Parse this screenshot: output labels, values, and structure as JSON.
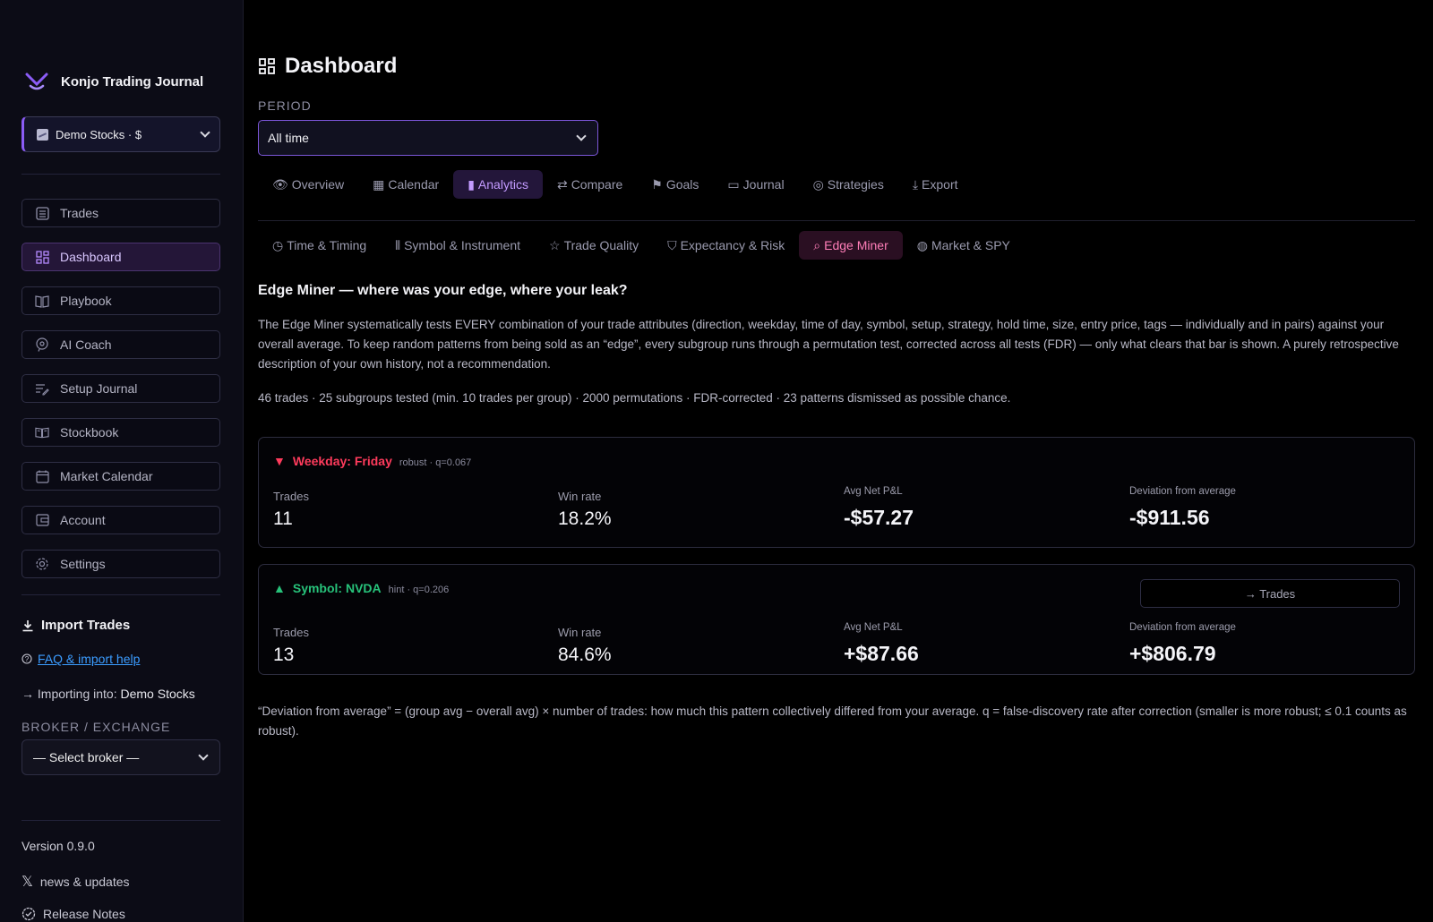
{
  "sidebar": {
    "brand": "Konjo Trading Journal",
    "account": "Demo Stocks · $",
    "nav": [
      {
        "label": "Trades",
        "icon": "list-icon"
      },
      {
        "label": "Dashboard",
        "icon": "grid-icon"
      },
      {
        "label": "Playbook",
        "icon": "book-icon"
      },
      {
        "label": "AI Coach",
        "icon": "coach-icon"
      },
      {
        "label": "Setup Journal",
        "icon": "edit-icon"
      },
      {
        "label": "Stockbook",
        "icon": "open-book-icon"
      },
      {
        "label": "Market Calendar",
        "icon": "calendar-icon"
      },
      {
        "label": "Account",
        "icon": "wallet-icon"
      },
      {
        "label": "Settings",
        "icon": "gear-icon"
      }
    ],
    "active_nav": "Dashboard",
    "import_title": "Import Trades",
    "faq_link": "FAQ & import help",
    "importing_prefix": "Importing into:",
    "importing_target": "Demo Stocks",
    "broker_label": "BROKER / EXCHANGE",
    "broker_select": "— Select broker —",
    "version": "Version 0.9.0",
    "news": "news & updates",
    "release_notes": "Release Notes"
  },
  "main": {
    "title": "Dashboard",
    "period_label": "PERIOD",
    "period_value": "All time",
    "tabs": [
      {
        "label": "Overview",
        "icon": "eye-icon"
      },
      {
        "label": "Calendar",
        "icon": "calendar-icon"
      },
      {
        "label": "Analytics",
        "icon": "bar-chart-icon"
      },
      {
        "label": "Compare",
        "icon": "compare-icon"
      },
      {
        "label": "Goals",
        "icon": "flag-icon"
      },
      {
        "label": "Journal",
        "icon": "book-icon"
      },
      {
        "label": "Strategies",
        "icon": "target-icon"
      },
      {
        "label": "Export",
        "icon": "download-icon"
      }
    ],
    "active_tab": "Analytics",
    "subtabs": [
      {
        "label": "Time & Timing",
        "icon": "clock-icon"
      },
      {
        "label": "Symbol & Instrument",
        "icon": "candles-icon"
      },
      {
        "label": "Trade Quality",
        "icon": "star-icon"
      },
      {
        "label": "Expectancy & Risk",
        "icon": "shield-icon"
      },
      {
        "label": "Edge Miner",
        "icon": "search-icon"
      },
      {
        "label": "Market & SPY",
        "icon": "globe-icon"
      }
    ],
    "active_subtab": "Edge Miner",
    "section_title": "Edge Miner — where was your edge, where your leak?",
    "description": "The Edge Miner systematically tests EVERY combination of your trade attributes (direction, weekday, time of day, symbol, setup, strategy, hold time, size, entry price, tags — individually and in pairs) against your overall average. To keep random patterns from being sold as an “edge”, every subgroup runs through a permutation test, corrected across all tests (FDR) — only what clears that bar is shown. A purely retrospective description of your own history, not a recommendation.",
    "stats": "46 trades · 25 subgroups tested (min. 10 trades per group) · 2000 permutations · FDR-corrected · 23 patterns dismissed as possible chance.",
    "cards": [
      {
        "direction": "down",
        "title": "Weekday: Friday",
        "meta": "robust · q=0.067",
        "trades_label": "Trades",
        "trades": "11",
        "winrate_label": "Win rate",
        "winrate": "18.2%",
        "avg_label": "Avg Net P&L",
        "avg": "-$57.27",
        "dev_label": "Deviation from average",
        "dev": "-$911.56"
      },
      {
        "direction": "up",
        "title": "Symbol: NVDA",
        "meta": "hint · q=0.206",
        "button": "→ Trades",
        "trades_label": "Trades",
        "trades": "13",
        "winrate_label": "Win rate",
        "winrate": "84.6%",
        "avg_label": "Avg Net P&L",
        "avg": "+$87.66",
        "dev_label": "Deviation from average",
        "dev": "+$806.79"
      }
    ],
    "footnote": "“Deviation from average” = (group avg − overall avg) × number of trades: how much this pattern collectively differed from your average. q = false-discovery rate after correction (smaller is more robust; ≤ 0.1 counts as robust)."
  },
  "colors": {
    "accent": "#8b5cf6",
    "negative": "#ff3b5c",
    "positive": "#27c27a",
    "edge_miner_tab": "#ff7eb8"
  }
}
